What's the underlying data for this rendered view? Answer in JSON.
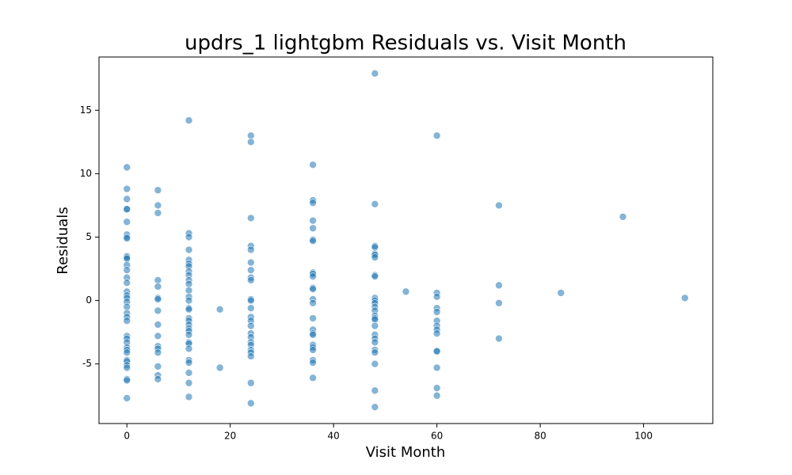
{
  "chart_data": {
    "type": "scatter",
    "title": "updrs_1 lightgbm Residuals vs. Visit Month",
    "x_label": "Visit Month",
    "y_label": "Residuals",
    "color": "#1f77b4",
    "xlim": [
      -5.4,
      113.4
    ],
    "ylim": [
      -9.7,
      19.2
    ],
    "xticks": [
      0,
      20,
      40,
      60,
      80,
      100
    ],
    "yticks": [
      -5,
      0,
      5,
      10,
      15
    ],
    "x": [
      0,
      0,
      0,
      0,
      0,
      0,
      0,
      0,
      0,
      0,
      0,
      0,
      0,
      0,
      0,
      0,
      0,
      0,
      0,
      0,
      0,
      0,
      0,
      0,
      0,
      0,
      0,
      0,
      0,
      0,
      0,
      0,
      0,
      0,
      0,
      0,
      0,
      6,
      6,
      6,
      6,
      6,
      6,
      6,
      6,
      6,
      6,
      6,
      6,
      6,
      6,
      6,
      6,
      12,
      12,
      12,
      12,
      12,
      12,
      12,
      12,
      12,
      12,
      12,
      12,
      12,
      12,
      12,
      12,
      12,
      12,
      12,
      12,
      12,
      12,
      12,
      12,
      12,
      12,
      12,
      12,
      12,
      12,
      18,
      18,
      24,
      24,
      24,
      24,
      24,
      24,
      24,
      24,
      24,
      24,
      24,
      24,
      24,
      24,
      24,
      24,
      24,
      24,
      24,
      24,
      24,
      24,
      24,
      24,
      36,
      36,
      36,
      36,
      36,
      36,
      36,
      36,
      36,
      36,
      36,
      36,
      36,
      36,
      36,
      36,
      36,
      36,
      36,
      36,
      36,
      36,
      36,
      36,
      48,
      48,
      48,
      48,
      48,
      48,
      48,
      48,
      48,
      48,
      48,
      48,
      48,
      48,
      48,
      48,
      48,
      48,
      48,
      48,
      48,
      48,
      48,
      48,
      48,
      48,
      54,
      60,
      60,
      60,
      60,
      60,
      60,
      60,
      60,
      60,
      60,
      60,
      60,
      60,
      60,
      72,
      72,
      72,
      72,
      84,
      96,
      108
    ],
    "values": [
      10.5,
      8.8,
      8.0,
      7.2,
      7.2,
      6.2,
      5.2,
      5.0,
      4.9,
      3.5,
      3.4,
      3.3,
      2.8,
      2.4,
      1.8,
      1.4,
      0.7,
      0.4,
      0.2,
      -0.1,
      -0.5,
      -1.0,
      -1.3,
      -1.6,
      -2.8,
      -3.0,
      -3.3,
      -3.7,
      -3.9,
      -4.1,
      -4.7,
      -4.8,
      -5.1,
      -5.3,
      -6.2,
      -6.3,
      -7.7,
      8.7,
      7.5,
      6.9,
      1.6,
      1.1,
      0.2,
      0.1,
      -0.8,
      -1.9,
      -2.8,
      -3.6,
      -3.8,
      -4.1,
      -5.2,
      -5.9,
      -6.2,
      14.2,
      5.3,
      5.0,
      4.0,
      3.2,
      2.9,
      2.7,
      2.3,
      2.0,
      1.6,
      1.3,
      0.8,
      0.3,
      0.0,
      -0.6,
      -0.7,
      -1.4,
      -1.6,
      -1.9,
      -2.2,
      -2.4,
      -2.7,
      -3.3,
      -3.4,
      -3.8,
      -4.7,
      -4.9,
      -5.7,
      -6.5,
      -7.6,
      -0.7,
      -5.3,
      13.0,
      12.5,
      6.5,
      4.3,
      4.0,
      3.0,
      2.4,
      1.8,
      1.6,
      0.1,
      0.0,
      -0.6,
      -1.3,
      -1.6,
      -2.0,
      -2.6,
      -2.9,
      -3.3,
      -3.5,
      -3.9,
      -4.1,
      -4.4,
      -6.5,
      -8.1,
      10.7,
      7.9,
      7.7,
      6.3,
      5.7,
      4.8,
      4.7,
      2.2,
      2.1,
      1.9,
      1.0,
      0.9,
      0.1,
      -0.2,
      -1.4,
      -2.3,
      -2.6,
      -2.7,
      -3.5,
      -3.7,
      -3.9,
      -4.7,
      -4.9,
      -6.1,
      17.9,
      7.6,
      4.3,
      4.2,
      3.7,
      3.6,
      3.4,
      2.0,
      1.9,
      0.2,
      0.0,
      -0.2,
      -0.5,
      -0.8,
      -1.2,
      -1.4,
      -1.5,
      -2.0,
      -2.7,
      -3.0,
      -3.3,
      -3.9,
      -4.1,
      -5.0,
      -7.1,
      -8.4,
      0.7,
      13.0,
      0.6,
      0.3,
      -0.6,
      -0.9,
      -1.6,
      -2.0,
      -2.3,
      -2.6,
      -4.0,
      -4.0,
      -5.3,
      -6.9,
      -7.5,
      7.5,
      1.2,
      -0.2,
      -3.0,
      0.6,
      6.6,
      0.2
    ]
  }
}
